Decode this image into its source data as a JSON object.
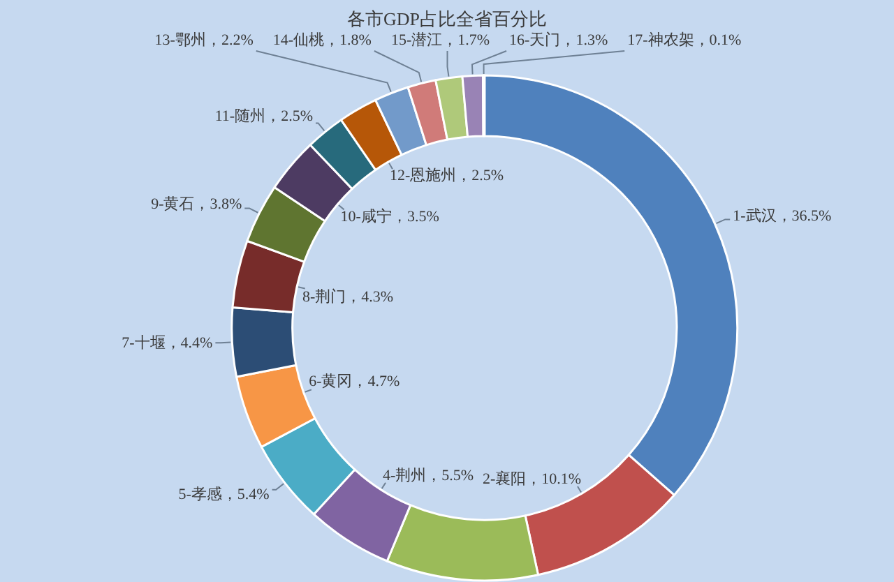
{
  "chart_data": {
    "type": "donut",
    "title": "各市GDP占比全省百分比",
    "categories": [
      "1-武汉",
      "2-襄阳",
      null,
      "4-荆州",
      "5-孝感",
      "6-黄冈",
      "7-十堰",
      "8-荆门",
      "9-黄石",
      "10-咸宁",
      "11-随州",
      "12-恩施州",
      "13-鄂州",
      "14-仙桃",
      "15-潜江",
      "16-天门",
      "17-神农架"
    ],
    "values": [
      36.5,
      10.1,
      9.7,
      5.5,
      5.4,
      4.7,
      4.4,
      4.3,
      3.8,
      3.5,
      2.5,
      2.5,
      2.2,
      1.8,
      1.7,
      1.3,
      0.1
    ],
    "value_labels": [
      "36.5%",
      "10.1%",
      null,
      "5.5%",
      "5.4%",
      "4.7%",
      "4.4%",
      "4.3%",
      "3.8%",
      "3.5%",
      "2.5%",
      "2.5%",
      "2.2%",
      "1.8%",
      "1.7%",
      "1.3%",
      "0.1%"
    ],
    "colors": [
      "#4f81bd",
      "#c0504d",
      "#9bbb59",
      "#8064a2",
      "#4bacc6",
      "#f79646",
      "#2c4d75",
      "#772c2a",
      "#5f7530",
      "#4d3b62",
      "#276a7c",
      "#b65708",
      "#729aca",
      "#d07b79",
      "#afc97a",
      "#9983b5",
      "#6fbdd1"
    ]
  }
}
